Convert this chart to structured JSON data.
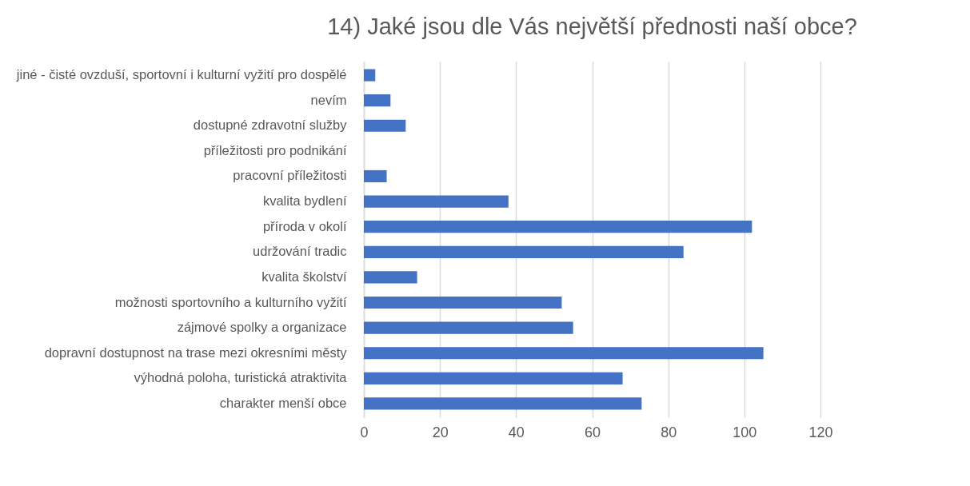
{
  "chart_data": {
    "type": "bar",
    "orientation": "horizontal",
    "title": "14) Jaké jsou dle Vás největší přednosti naší obce?",
    "categories": [
      "jiné - čisté ovzduší, sportovní i kulturní vyžití pro dospělé",
      "nevím",
      "dostupné zdravotní služby",
      "příležitosti pro podnikání",
      "pracovní příležitosti",
      "kvalita bydlení",
      "příroda v okolí",
      "udržování tradic",
      "kvalita školství",
      "možnosti sportovního a kulturního vyžití",
      "zájmové spolky a organizace",
      "dopravní dostupnost na trase mezi okresními městy",
      "výhodná poloha, turistická atraktivita",
      "charakter menší obce"
    ],
    "values": [
      3,
      7,
      11,
      0,
      6,
      38,
      102,
      84,
      14,
      52,
      55,
      105,
      68,
      73
    ],
    "color": "#4472c4",
    "xlim": [
      0,
      120
    ],
    "xticks": [
      0,
      20,
      40,
      60,
      80,
      100,
      120
    ],
    "grid": "x"
  }
}
